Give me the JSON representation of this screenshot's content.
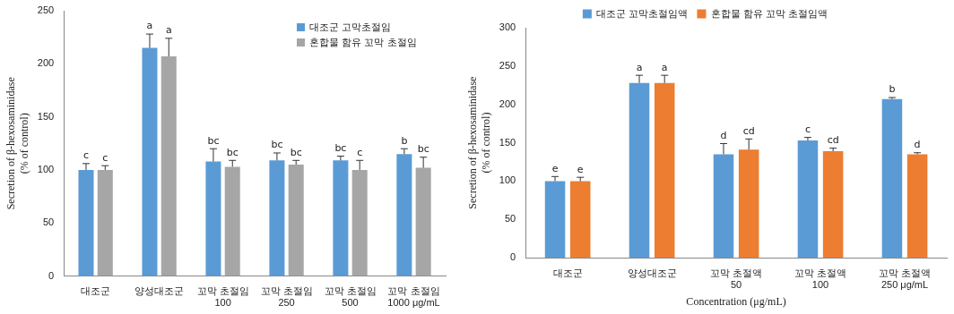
{
  "chart_data": [
    {
      "type": "bar",
      "y_label": "Secretion of β-hexosaminidase\n(% of control)",
      "categories": [
        "대조군",
        "양성대조군",
        "꼬막 초절임\n100",
        "꼬막 초절임\n250",
        "꼬막 초절임\n500",
        "꼬막 초절임\n1000 μg/mL"
      ],
      "series": [
        {
          "name": "대조군 고막초절임",
          "color": "#5b9bd5",
          "values": [
            100,
            215,
            108,
            109,
            109,
            115
          ],
          "errors": [
            6,
            13,
            12,
            7,
            4,
            5
          ],
          "letters": [
            "c",
            "a",
            "bc",
            "bc",
            "bc",
            "b"
          ]
        },
        {
          "name": "혼합물 함유 꼬막 초절임",
          "color": "#a6a6a6",
          "values": [
            100,
            207,
            103,
            105,
            100,
            102
          ],
          "errors": [
            4,
            17,
            6,
            4,
            9,
            10
          ],
          "letters": [
            "c",
            "a",
            "bc",
            "bc",
            "c",
            "bc"
          ]
        }
      ],
      "ylim": [
        0,
        250
      ],
      "yticks": [
        0,
        50,
        100,
        150,
        200,
        250
      ],
      "grid": false,
      "legend": "upper right"
    },
    {
      "type": "bar",
      "y_label": "Secretion of β-hexosaminidase\n(% of control)",
      "x_label": "Concentration (μg/mL)",
      "categories": [
        "대조군",
        "양성대조군",
        "꼬막 초절액\n50",
        "꼬막 초절액\n100",
        "꼬막 초절액\n250 μg/mL"
      ],
      "series": [
        {
          "name": "대조군 꼬막초절임액",
          "color": "#5b9bd5",
          "values": [
            100,
            228,
            135,
            153,
            207
          ],
          "errors": [
            6,
            10,
            14,
            4,
            2
          ],
          "letters": [
            "e",
            "a",
            "d",
            "c",
            "b"
          ]
        },
        {
          "name": "혼합물 함유 꼬막 초절임액",
          "color": "#ed7d31",
          "values": [
            100,
            228,
            141,
            139,
            135
          ],
          "errors": [
            5,
            10,
            14,
            4,
            2
          ],
          "letters": [
            "e",
            "a",
            "cd",
            "cd",
            "d"
          ]
        }
      ],
      "ylim": [
        0,
        300
      ],
      "yticks": [
        0,
        50,
        100,
        150,
        200,
        250,
        300
      ],
      "grid": false,
      "legend": "top"
    }
  ]
}
